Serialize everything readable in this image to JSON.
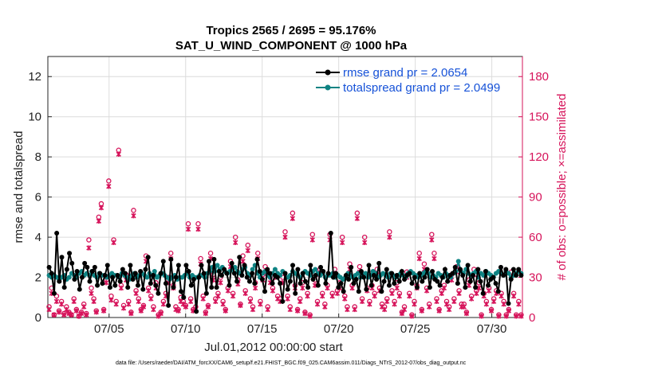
{
  "chart_data": {
    "type": "line",
    "title_line1": "Tropics 2565 / 2695 = 95.176%",
    "title_line2": "SAT_U_WIND_COMPONENT @ 1000 hPa",
    "xlabel": "Jul.01,2012 00:00:00 start",
    "ylabel_left": "rmse and totalspread",
    "ylabel_right": "# of obs: o=possible; ×=assimilated",
    "xlim": [
      1,
      32
    ],
    "ylim_left": [
      0,
      13
    ],
    "ylim_right": [
      0,
      195
    ],
    "x_ticks": [
      {
        "x": 5,
        "label": "07/05"
      },
      {
        "x": 10,
        "label": "07/10"
      },
      {
        "x": 15,
        "label": "07/15"
      },
      {
        "x": 20,
        "label": "07/20"
      },
      {
        "x": 25,
        "label": "07/25"
      },
      {
        "x": 30,
        "label": "07/30"
      }
    ],
    "y_ticks_left": [
      "0",
      "2",
      "4",
      "6",
      "8",
      "10",
      "12"
    ],
    "y_ticks_right": [
      "0",
      "30",
      "60",
      "90",
      "120",
      "150",
      "180"
    ],
    "grid": true,
    "legend_position": "top-right",
    "colors": {
      "rmse": "#000000",
      "totalspread": "#0e8383",
      "obs": "#d6135a",
      "legend_text": "#1652d8"
    },
    "series": [
      {
        "name": "rmse grand pr = 2.0654",
        "key": "rmse",
        "values": [
          2.5,
          2.2,
          1.2,
          4.2,
          1.8,
          3.0,
          1.5,
          2.4,
          3.2,
          2.7,
          1.9,
          2.3,
          1.4,
          2.0,
          2.7,
          2.5,
          1.8,
          2.3,
          2.5,
          1.6,
          2.2,
          1.7,
          2.1,
          2.6,
          1.5,
          2.0,
          1.6,
          2.1,
          1.8,
          2.4,
          2.2,
          1.5,
          2.6,
          1.9,
          2.2,
          1.6,
          2.3,
          1.4,
          2.4,
          3.0,
          1.7,
          2.1,
          1.6,
          1.2,
          2.2,
          2.8,
          1.7,
          0.6,
          2.9,
          1.5,
          2.0,
          2.6,
          1.3,
          1.0,
          2.6,
          2.3,
          1.6,
          1.9,
          0.3,
          2.0,
          2.6,
          2.2,
          1.2,
          2.8,
          1.5,
          2.9,
          1.5,
          2.3,
          2.1,
          2.4,
          2.2,
          1.6,
          2.7,
          2.2,
          1.8,
          3.0,
          2.1,
          2.6,
          2.0,
          1.8,
          2.2,
          1.7,
          2.9,
          2.3,
          1.9,
          1.3,
          2.4,
          2.2,
          1.7,
          2.1,
          2.0,
          1.7,
          0.8,
          2.2,
          1.4,
          1.8,
          2.6,
          1.2,
          2.4,
          1.7,
          2.2,
          1.8,
          1.5,
          2.6,
          1.9,
          2.1,
          1.6,
          2.5,
          2.3,
          1.7,
          2.2,
          4.2,
          2.0,
          2.2,
          1.5,
          1.7,
          1.3,
          2.1,
          1.9,
          2.5,
          1.7,
          1.9,
          1.3,
          2.3,
          2.0,
          1.4,
          2.6,
          1.6,
          2.1,
          1.9,
          2.7,
          1.3,
          1.8,
          2.4,
          1.6,
          2.2,
          1.7,
          2.1,
          1.8,
          2.3,
          1.9,
          2.1,
          2.2,
          1.7,
          2.0,
          1.5,
          2.2,
          1.8,
          2.0,
          2.4,
          1.5,
          2.3,
          1.9,
          1.8,
          1.6,
          2.0,
          2.4,
          1.8,
          2.1,
          2.2,
          2.5,
          1.7,
          2.4,
          2.1,
          1.5,
          2.6,
          1.8,
          2.1,
          1.5,
          2.4,
          1.8,
          1.2,
          2.3,
          1.6,
          1.9,
          2.0,
          1.7,
          1.3,
          2.5,
          2.1,
          2.4,
          0.7,
          1.9,
          2.4,
          2.1,
          2.4,
          2.1
        ]
      },
      {
        "name": "totalspread grand pr = 2.0499",
        "key": "totalspread",
        "values": [
          2.1,
          2.0,
          2.1,
          2.0,
          1.9,
          2.0,
          2.1,
          1.9,
          2.0,
          2.2,
          2.1,
          2.0,
          2.2,
          2.3,
          2.1,
          2.2,
          2.1,
          2.3,
          2.1,
          2.0,
          2.2,
          2.1,
          2.1,
          2.0,
          2.1,
          2.2,
          2.1,
          2.1,
          2.0,
          2.2,
          2.1,
          2.0,
          1.9,
          2.1,
          2.2,
          2.0,
          2.1,
          2.2,
          2.1,
          2.0,
          2.2,
          2.1,
          2.3,
          2.0,
          2.1,
          2.2,
          2.1,
          2.0,
          1.9,
          2.0,
          2.1,
          1.9,
          2.0,
          2.0,
          2.1,
          2.2,
          2.0,
          2.1,
          2.0,
          2.0,
          2.1,
          2.1,
          2.0,
          2.2,
          2.3,
          2.5,
          2.3,
          2.6,
          2.4,
          2.5,
          2.3,
          2.2,
          2.3,
          2.4,
          2.5,
          2.3,
          2.2,
          2.4,
          2.5,
          2.2,
          2.1,
          2.4,
          2.6,
          2.2,
          2.0,
          2.2,
          2.3,
          2.1,
          2.0,
          2.2,
          2.4,
          2.2,
          2.1,
          2.3,
          2.2,
          2.0,
          2.1,
          2.3,
          2.2,
          2.1,
          2.0,
          2.2,
          2.3,
          2.2,
          2.1,
          2.3,
          2.4,
          2.2,
          2.1,
          2.2,
          2.0,
          2.1,
          2.1,
          2.2,
          2.0,
          2.1,
          2.0,
          1.9,
          2.0,
          2.2,
          2.1,
          2.0,
          2.1,
          2.2,
          2.0,
          2.1,
          2.2,
          2.0,
          2.1,
          2.3,
          2.2,
          2.0,
          2.1,
          2.2,
          2.1,
          2.0,
          2.2,
          2.1,
          2.0,
          2.1,
          2.2,
          2.1,
          2.0,
          2.2,
          2.3,
          2.2,
          2.1,
          2.0,
          2.1,
          2.2,
          2.3,
          2.2,
          2.0,
          2.1,
          2.0,
          2.2,
          2.1,
          2.0,
          2.2,
          2.1,
          2.0,
          2.2,
          2.3,
          2.8,
          2.3,
          2.2,
          2.4,
          2.2,
          2.1,
          2.2,
          2.3,
          2.0,
          2.2,
          2.1,
          2.3,
          2.2,
          2.1,
          2.0,
          2.2,
          2.3,
          2.2,
          2.1,
          2.3,
          2.2,
          2.0,
          2.1,
          2.2,
          2.3,
          2.2
        ]
      },
      {
        "name": "obs possible",
        "key": "obs_possible",
        "axis": "right",
        "values": [
          8,
          22,
          2,
          16,
          5,
          12,
          3,
          8,
          4,
          2,
          14,
          6,
          1,
          4,
          10,
          3,
          58,
          22,
          14,
          5,
          75,
          85,
          6,
          30,
          102,
          16,
          58,
          12,
          125,
          24,
          9,
          32,
          12,
          4,
          80,
          20,
          14,
          6,
          9,
          46,
          22,
          16,
          8,
          26,
          2,
          4,
          12,
          18,
          30,
          48,
          24,
          8,
          6,
          15,
          12,
          9,
          70,
          14,
          6,
          8,
          70,
          44,
          16,
          4,
          9,
          48,
          32,
          14,
          18,
          30,
          12,
          6,
          22,
          42,
          18,
          60,
          28,
          10,
          46,
          20,
          54,
          14,
          8,
          26,
          48,
          12,
          32,
          38,
          8,
          30,
          22,
          34,
          16,
          14,
          30,
          64,
          16,
          8,
          78,
          24,
          6,
          14,
          26,
          4,
          18,
          2,
          62,
          28,
          12,
          36,
          18,
          10,
          24,
          62,
          18,
          36,
          20,
          26,
          60,
          16,
          8,
          40,
          24,
          8,
          78,
          38,
          14,
          60,
          22,
          12,
          24,
          18,
          36,
          22,
          10,
          8,
          14,
          64,
          20,
          12,
          26,
          18,
          4,
          8,
          34,
          18,
          2,
          12,
          24,
          48,
          6,
          40,
          22,
          10,
          62,
          48,
          14,
          6,
          20,
          24,
          12,
          8,
          32,
          14,
          38,
          20,
          10,
          10,
          4,
          28,
          16,
          36,
          20,
          26,
          2,
          18,
          12,
          22,
          6,
          14,
          20,
          2,
          18,
          12,
          2,
          6,
          34,
          18,
          2,
          12,
          2
        ]
      },
      {
        "name": "obs assimilated",
        "key": "obs_assimilated",
        "axis": "right",
        "values": [
          6,
          18,
          2,
          12,
          4,
          10,
          2,
          6,
          3,
          2,
          12,
          5,
          1,
          3,
          8,
          2,
          52,
          18,
          12,
          4,
          72,
          82,
          5,
          26,
          98,
          13,
          56,
          10,
          122,
          22,
          7,
          28,
          10,
          3,
          76,
          18,
          12,
          5,
          8,
          42,
          20,
          14,
          6,
          22,
          1,
          3,
          10,
          16,
          26,
          44,
          22,
          6,
          5,
          12,
          10,
          8,
          66,
          12,
          5,
          6,
          66,
          40,
          14,
          3,
          8,
          44,
          28,
          12,
          16,
          26,
          10,
          5,
          20,
          38,
          16,
          56,
          25,
          9,
          42,
          18,
          50,
          12,
          6,
          22,
          44,
          10,
          28,
          34,
          6,
          26,
          20,
          30,
          14,
          12,
          26,
          60,
          14,
          6,
          74,
          22,
          5,
          12,
          22,
          3,
          16,
          1,
          58,
          24,
          10,
          32,
          16,
          8,
          22,
          58,
          16,
          32,
          18,
          22,
          56,
          14,
          6,
          36,
          22,
          6,
          74,
          34,
          12,
          56,
          20,
          10,
          22,
          16,
          32,
          20,
          8,
          6,
          12,
          60,
          18,
          10,
          22,
          16,
          3,
          6,
          30,
          16,
          1,
          10,
          22,
          44,
          5,
          36,
          20,
          8,
          58,
          44,
          12,
          5,
          18,
          22,
          10,
          6,
          28,
          12,
          34,
          18,
          8,
          8,
          3,
          24,
          14,
          32,
          18,
          22,
          1,
          16,
          10,
          20,
          5,
          12,
          18,
          1,
          16,
          10,
          1,
          5,
          30,
          16,
          1,
          10,
          1
        ]
      }
    ],
    "footer": "data file: /Users/raeder/DAI/ATM_forcXX/CAM6_setup/f.e21.FHIST_BGC.f09_025.CAM6assim.011/Diags_NTrS_2012-07/obs_diag_output.nc"
  }
}
